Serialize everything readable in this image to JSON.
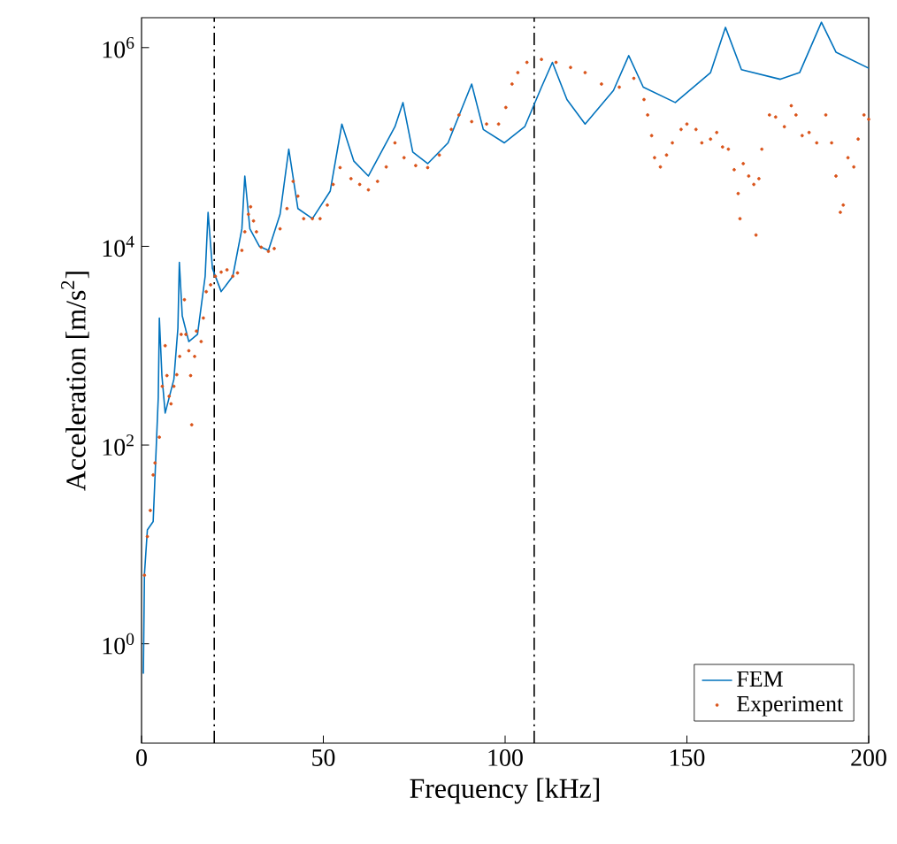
{
  "chart_data": {
    "type": "line",
    "xlabel": "Frequency [kHz]",
    "ylabel": "Acceleration [m/s$^{2}$]",
    "xlim": [
      0,
      200
    ],
    "ylim": [
      0.1,
      2000000
    ],
    "log": "y",
    "xticks": [
      0,
      50,
      100,
      150,
      200
    ],
    "yticks": [
      {
        "value": 1,
        "label": "10$^{0}$"
      },
      {
        "value": 100,
        "label": "10$^{2}$"
      },
      {
        "value": 10000,
        "label": "10$^{4}$"
      },
      {
        "value": 1000000,
        "label": "10$^{6}$"
      }
    ],
    "legend": "bottom right",
    "grid": false,
    "ref_lines": [
      {
        "axis": "x",
        "value": 20,
        "color": "#000000",
        "line_style": "dashdot"
      },
      {
        "axis": "x",
        "value": 108,
        "color": "#000000",
        "line_style": "dashdot"
      }
    ],
    "series": [
      {
        "name": "FEM",
        "color": "#0072bd",
        "marker": "none",
        "x": [
          0.5,
          0.8,
          1.6,
          3.2,
          4.6,
          4.9,
          5.6,
          6.5,
          8.9,
          10.0,
          10.4,
          11.2,
          13,
          15.4,
          17.5,
          18.3,
          19.5,
          21.9,
          25.1,
          27.6,
          28.4,
          29.8,
          32.4,
          34.9,
          38.1,
          40.5,
          43,
          47,
          51.9,
          55.1,
          58.4,
          62.4,
          69.7,
          71.9,
          74.6,
          78.7,
          84.3,
          90.8,
          94,
          99.8,
          105.4,
          110,
          113,
          117,
          122,
          129.8,
          134,
          138,
          146.8,
          156.5,
          160.6,
          165,
          175.7,
          181,
          187,
          191,
          200
        ],
        "values": [
          0.5,
          5,
          14,
          17,
          300,
          1900,
          500,
          210,
          460,
          1500,
          6900,
          2000,
          1100,
          1300,
          5000,
          22000,
          6000,
          3500,
          5000,
          15000,
          51000,
          15000,
          10000,
          9100,
          21000,
          95000,
          24000,
          19000,
          36000,
          170000,
          72000,
          51000,
          160000,
          280000,
          89000,
          68000,
          110000,
          430000,
          150000,
          110000,
          160000,
          400000,
          710000,
          300000,
          170000,
          370000,
          830000,
          400000,
          280000,
          560000,
          1600000,
          600000,
          480000,
          560000,
          1800000,
          900000,
          620000
        ]
      },
      {
        "name": "Experiment",
        "type": "scatter",
        "color": "#d95319",
        "marker": "circle",
        "x": [
          0.8,
          1.6,
          2.4,
          3.2,
          3.7,
          4.9,
          5.7,
          6.5,
          7,
          7.6,
          8.1,
          8.9,
          9.7,
          10.5,
          10.9,
          11.8,
          12.2,
          13,
          13.5,
          13.8,
          14.6,
          15.1,
          16.4,
          17,
          17.8,
          19,
          20.3,
          21.9,
          23.5,
          25.1,
          26.4,
          27.6,
          28.4,
          29.4,
          30,
          30.8,
          31.6,
          32.9,
          34.9,
          36.5,
          38.1,
          40,
          41.7,
          43,
          44.6,
          47,
          49.1,
          51.1,
          52.7,
          54.6,
          57.6,
          60,
          62.4,
          64.9,
          67.3,
          69.7,
          72.2,
          75.4,
          78.7,
          81.9,
          85.2,
          87.3,
          90.8,
          94.9,
          98.2,
          100.2,
          101.9,
          103.5,
          106,
          110,
          114,
          118,
          122,
          126.5,
          131.4,
          135.4,
          138.2,
          139.2,
          140.3,
          141.1,
          142.7,
          144.4,
          146,
          148.4,
          150,
          152.5,
          154.1,
          156.5,
          158.2,
          159.8,
          161.4,
          163,
          164.1,
          164.6,
          165.5,
          167,
          168.4,
          169,
          169.8,
          170.6,
          172.7,
          174.4,
          176.8,
          178.7,
          180,
          181.7,
          183.6,
          185.7,
          188.2,
          189.8,
          191,
          192.2,
          193,
          194.3,
          195.9,
          197.1,
          198.7,
          200
        ],
        "values": [
          4.9,
          12,
          22,
          50,
          66,
          120,
          390,
          1000,
          500,
          310,
          260,
          390,
          510,
          780,
          1300,
          2900,
          1300,
          890,
          500,
          160,
          780,
          1400,
          1100,
          1900,
          3500,
          4100,
          5000,
          5500,
          5800,
          5000,
          5400,
          9100,
          14000,
          21000,
          25000,
          18000,
          14000,
          9800,
          8900,
          9500,
          15000,
          24000,
          45000,
          32000,
          19000,
          19000,
          19000,
          26000,
          42000,
          62000,
          48000,
          42000,
          37000,
          45000,
          63000,
          110000,
          78000,
          65000,
          62000,
          83000,
          150000,
          210000,
          180000,
          170000,
          170000,
          250000,
          430000,
          560000,
          710000,
          760000,
          710000,
          630000,
          560000,
          430000,
          400000,
          490000,
          300000,
          210000,
          130000,
          78000,
          63000,
          83000,
          110000,
          150000,
          170000,
          150000,
          110000,
          120000,
          140000,
          100000,
          95000,
          59000,
          34000,
          19000,
          68000,
          51000,
          42000,
          13000,
          48000,
          95000,
          210000,
          200000,
          160000,
          260000,
          210000,
          130000,
          140000,
          110000,
          210000,
          110000,
          51000,
          22000,
          26000,
          78000,
          63000,
          120000,
          210000,
          190000
        ]
      }
    ]
  }
}
